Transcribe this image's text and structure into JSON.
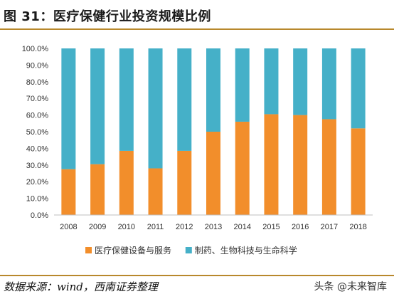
{
  "header": {
    "title": "图 31：医疗保健行业投资规模比例"
  },
  "footer": {
    "source": "数据来源：wind，西南证券整理",
    "watermark": "头条 @未来智库"
  },
  "colors": {
    "accent_rule": "#b8882c",
    "series_orange": "#f28e2b",
    "series_teal": "#45b0c8"
  },
  "chart_data": {
    "type": "bar",
    "stacked": true,
    "categories": [
      "2008",
      "2009",
      "2010",
      "2011",
      "2012",
      "2013",
      "2014",
      "2015",
      "2016",
      "2017",
      "2018"
    ],
    "series": [
      {
        "name": "医疗保健设备与服务",
        "color": "#f28e2b",
        "values": [
          27.5,
          30.5,
          38.5,
          28.0,
          38.5,
          50.0,
          56.0,
          60.5,
          60.0,
          57.5,
          52.0
        ]
      },
      {
        "name": "制药、生物科技与生命科学",
        "color": "#45b0c8",
        "values": [
          72.5,
          69.5,
          61.5,
          72.0,
          61.5,
          50.0,
          44.0,
          39.5,
          40.0,
          42.5,
          48.0
        ]
      }
    ],
    "ylim": [
      0,
      100
    ],
    "yticks": [
      "0.0%",
      "10.0%",
      "20.0%",
      "30.0%",
      "40.0%",
      "50.0%",
      "60.0%",
      "70.0%",
      "80.0%",
      "90.0%",
      "100.0%"
    ],
    "grid": false,
    "legend_position": "bottom"
  }
}
